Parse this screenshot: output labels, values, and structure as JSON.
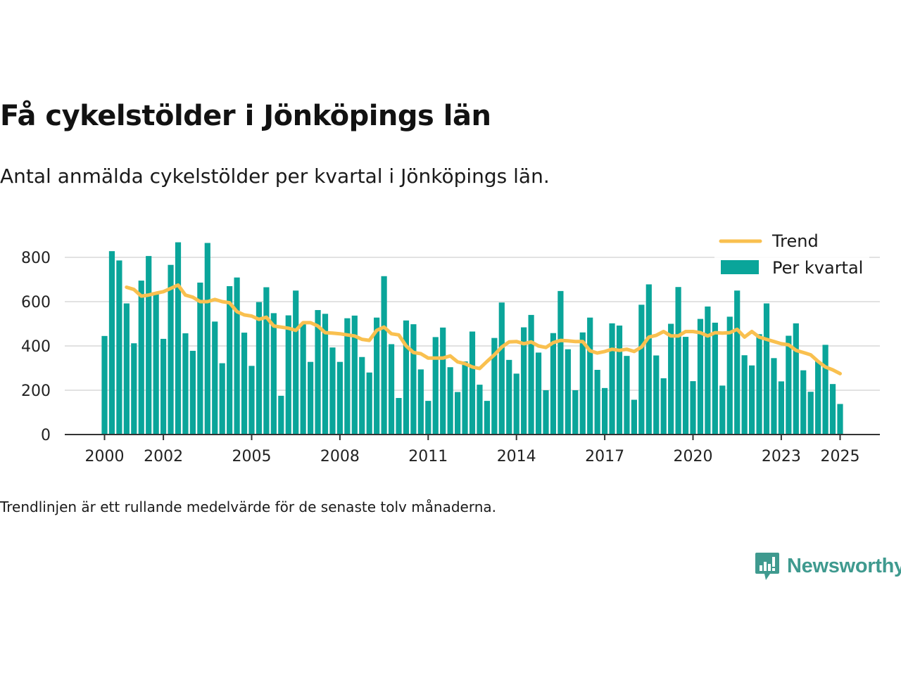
{
  "title": "Få cykelstölder i Jönköpings län",
  "subtitle": "Antal anmälda cykelstölder per kvartal i Jönköpings län.",
  "footnote": "Trendlinjen är ett rullande medelvärde för de senaste tolv månaderna.",
  "brand": {
    "name": "Newsworthy",
    "icon": "chart-bubble-icon"
  },
  "colors": {
    "bars": "#0aa59a",
    "trend": "#f9c04f",
    "grid": "#d9d9d9",
    "axis": "#333333",
    "brand": "#3f9a8f"
  },
  "chart_data": {
    "type": "bar",
    "x_unit": "quarter",
    "x_start": "2000 Q1",
    "legend": {
      "position": "top-right",
      "entries": [
        "Trend",
        "Per kvartal"
      ]
    },
    "xticks": [
      "2000",
      "2002",
      "2005",
      "2008",
      "2011",
      "2014",
      "2017",
      "2020",
      "2023",
      "2025"
    ],
    "xtick_years": [
      2000,
      2002,
      2005,
      2008,
      2011,
      2014,
      2017,
      2020,
      2023,
      2025
    ],
    "yticks": [
      "0",
      "200",
      "400",
      "600",
      "800"
    ],
    "ylim": [
      0,
      900
    ],
    "grid": true,
    "series": [
      {
        "name": "Per kvartal",
        "type": "bar",
        "values": [
          445,
          828,
          786,
          592,
          412,
          695,
          806,
          642,
          432,
          766,
          868,
          457,
          378,
          686,
          865,
          510,
          322,
          670,
          709,
          460,
          310,
          598,
          665,
          548,
          175,
          538,
          650,
          498,
          328,
          562,
          545,
          393,
          328,
          525,
          537,
          350,
          280,
          528,
          715,
          408,
          165,
          515,
          498,
          294,
          152,
          440,
          483,
          304,
          192,
          330,
          465,
          225,
          152,
          436,
          596,
          337,
          275,
          484,
          540,
          370,
          200,
          458,
          648,
          385,
          200,
          461,
          528,
          292,
          210,
          502,
          492,
          355,
          157,
          586,
          678,
          357,
          254,
          500,
          666,
          441,
          241,
          522,
          578,
          505,
          221,
          532,
          650,
          358,
          312,
          453,
          592,
          345,
          240,
          446,
          502,
          290,
          193,
          330,
          405,
          228,
          138
        ]
      },
      {
        "name": "Trend",
        "type": "line",
        "values": [
          null,
          null,
          null,
          665,
          655,
          625,
          630,
          638,
          645,
          660,
          675,
          630,
          620,
          600,
          600,
          610,
          600,
          595,
          555,
          540,
          535,
          520,
          530,
          490,
          485,
          480,
          470,
          505,
          505,
          490,
          460,
          458,
          455,
          450,
          445,
          430,
          425,
          470,
          485,
          455,
          450,
          400,
          370,
          365,
          345,
          345,
          345,
          355,
          328,
          320,
          305,
          298,
          330,
          360,
          395,
          418,
          420,
          410,
          418,
          400,
          393,
          415,
          425,
          423,
          420,
          420,
          378,
          368,
          375,
          385,
          380,
          385,
          375,
          395,
          440,
          448,
          465,
          445,
          445,
          465,
          465,
          460,
          445,
          460,
          458,
          460,
          475,
          440,
          465,
          440,
          430,
          420,
          410,
          405,
          380,
          370,
          360,
          330,
          305,
          292,
          275
        ]
      }
    ]
  }
}
